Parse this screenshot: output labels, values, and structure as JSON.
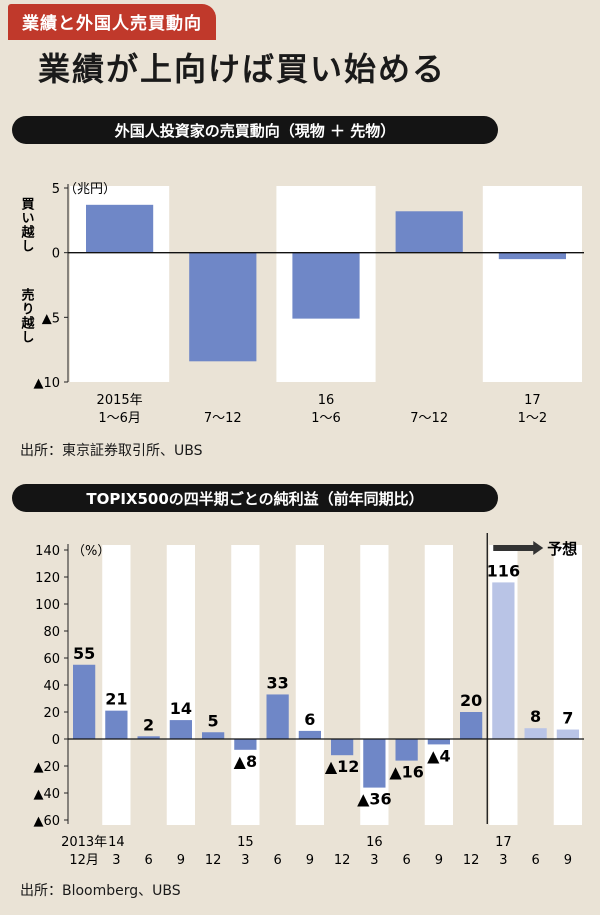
{
  "tag": "業績と外国人売買動向",
  "headline": "業績が上向けば買い始める",
  "chart1_title": "外国人投資家の売買動向（現物 ＋ 先物）",
  "chart1_source": "出所：東京証券取引所、UBS",
  "chart2_title": "TOPIX500の四半期ごとの純利益（前年同期比）",
  "chart2_source": "出所：Bloomberg、UBS",
  "colors": {
    "bar": "#6f87c7",
    "forecast": "#b9c4e6",
    "bg": "#eae3d6",
    "band": "#ffffff",
    "tag": "#c0392b"
  },
  "chart_data": [
    {
      "type": "bar",
      "title": "外国人投資家の売買動向（現物 ＋ 先物）",
      "unit": "（兆円）",
      "ylabel_top": "買い越し",
      "ylabel_bottom": "売り越し",
      "ylim": [
        -10,
        5
      ],
      "yticks": [
        5,
        0,
        -5,
        -10
      ],
      "ytick_labels": [
        "5",
        "0",
        "▲5",
        "▲10"
      ],
      "categories": [
        [
          "2015年",
          "1〜6月"
        ],
        [
          "7〜12"
        ],
        [
          "16",
          "1〜6"
        ],
        [
          "7〜12"
        ],
        [
          "17",
          "1〜2"
        ]
      ],
      "values": [
        3.7,
        -8.4,
        -5.1,
        3.2,
        -0.5
      ]
    },
    {
      "type": "bar",
      "title": "TOPIX500の四半期ごとの純利益（前年同期比）",
      "unit": "（%）",
      "ylim": [
        -60,
        140
      ],
      "yticks": [
        140,
        120,
        100,
        80,
        60,
        40,
        20,
        0,
        -20,
        -40,
        -60
      ],
      "ytick_labels": [
        "140",
        "120",
        "100",
        "80",
        "60",
        "40",
        "20",
        "0",
        "▲20",
        "▲40",
        "▲60"
      ],
      "forecast_label": "予想",
      "forecast_start_index": 13,
      "categories": [
        [
          "2013年",
          "12月"
        ],
        [
          "14",
          "3"
        ],
        [
          "6"
        ],
        [
          "9"
        ],
        [
          "12"
        ],
        [
          "15",
          "3"
        ],
        [
          "6"
        ],
        [
          "9"
        ],
        [
          "12"
        ],
        [
          "16",
          "3"
        ],
        [
          "6"
        ],
        [
          "9"
        ],
        [
          "12"
        ],
        [
          "17",
          "3"
        ],
        [
          "6"
        ],
        [
          "9"
        ]
      ],
      "values": [
        55,
        21,
        2,
        14,
        5,
        -8,
        33,
        6,
        -12,
        -36,
        -16,
        -4,
        20,
        116,
        8,
        7
      ],
      "value_labels": [
        "55",
        "21",
        "2",
        "14",
        "5",
        "▲8",
        "33",
        "6",
        "▲12",
        "▲36",
        "▲16",
        "▲4",
        "20",
        "116",
        "8",
        "7"
      ]
    }
  ]
}
